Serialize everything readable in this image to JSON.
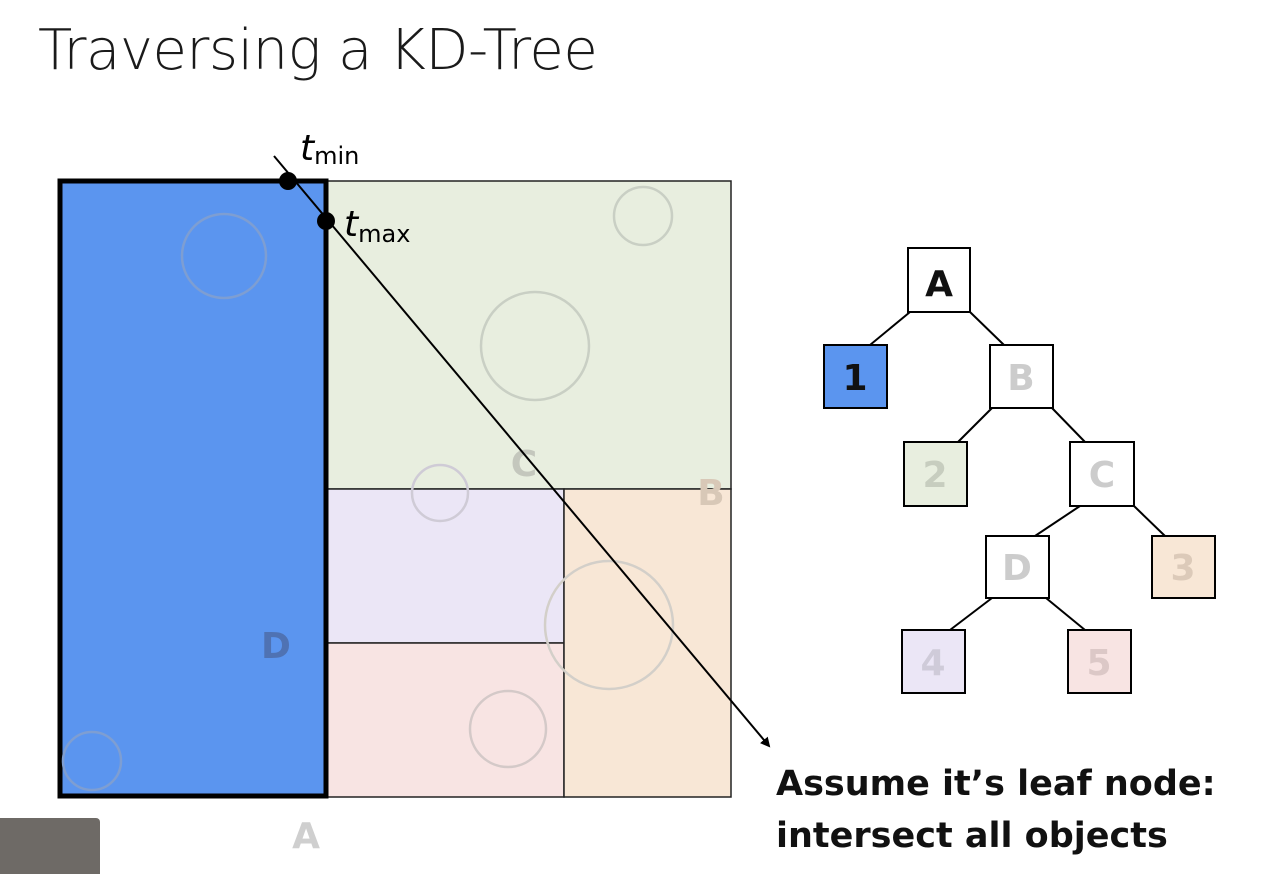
{
  "slide": {
    "title": "Traversing a KD-Tree",
    "caption_line1": "Assume it’s leaf node:",
    "caption_line2": "intersect all objects"
  },
  "diagram": {
    "region_labels": {
      "A": "A",
      "B": "B",
      "C": "C",
      "D": "D"
    },
    "ray_labels": {
      "tmin_t": "t",
      "tmin_sub": "min",
      "tmax_t": "t",
      "tmax_sub": "max"
    }
  },
  "tree": {
    "nodes": [
      {
        "id": "A",
        "label": "A",
        "kind": "interior",
        "state": "visited"
      },
      {
        "id": "1",
        "label": "1",
        "kind": "leaf",
        "state": "current",
        "fill": "#5b95ef"
      },
      {
        "id": "B",
        "label": "B",
        "kind": "interior",
        "state": "faded"
      },
      {
        "id": "2",
        "label": "2",
        "kind": "leaf",
        "state": "faded",
        "fill": "#e8eedf"
      },
      {
        "id": "C",
        "label": "C",
        "kind": "interior",
        "state": "faded"
      },
      {
        "id": "D",
        "label": "D",
        "kind": "interior",
        "state": "faded"
      },
      {
        "id": "3",
        "label": "3",
        "kind": "leaf",
        "state": "faded",
        "fill": "#f8e7d6"
      },
      {
        "id": "4",
        "label": "4",
        "kind": "leaf",
        "state": "faded",
        "fill": "#ebe6f6"
      },
      {
        "id": "5",
        "label": "5",
        "kind": "leaf",
        "state": "faded",
        "fill": "#f8e4e3"
      }
    ]
  },
  "colors": {
    "leaf1_blue": "#5b95ef",
    "region2_green": "#e8eedf",
    "region3_orange": "#f8e7d6",
    "region4_purple": "#ebe6f6",
    "region5_pink": "#f8e4e3"
  }
}
